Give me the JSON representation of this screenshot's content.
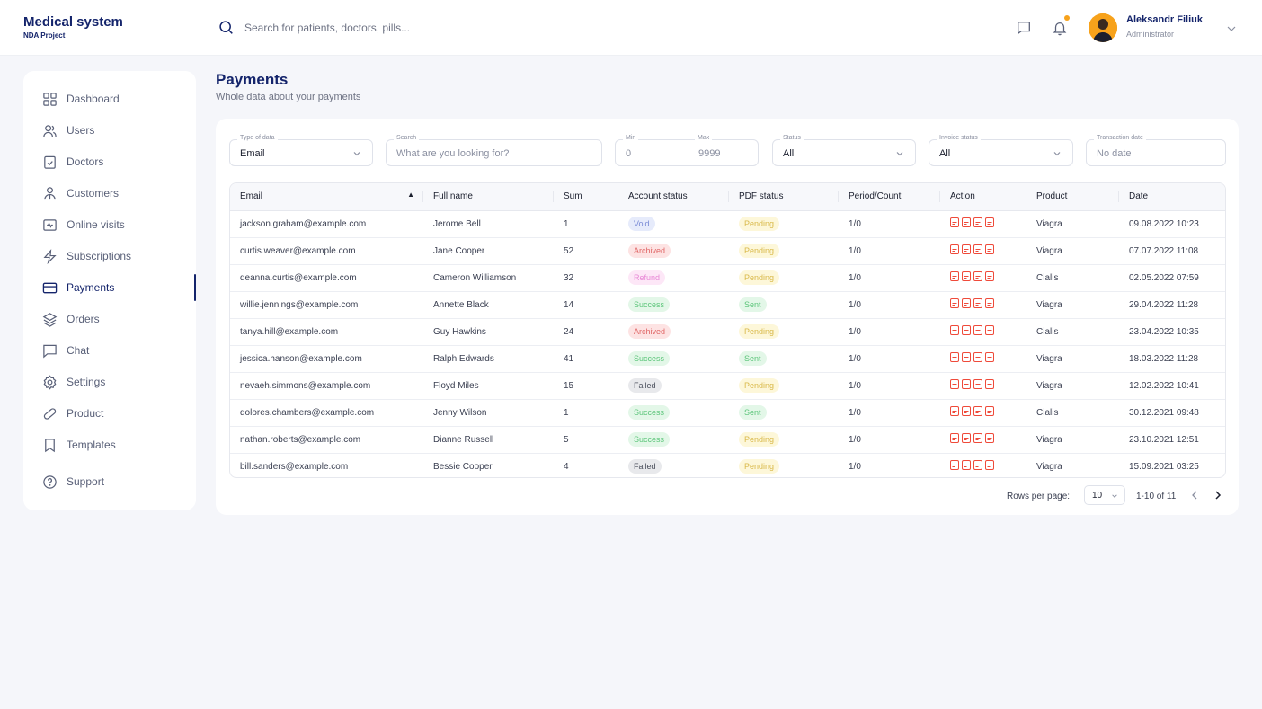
{
  "brand": {
    "title": "Medical system",
    "subtitle": "NDA Project"
  },
  "search": {
    "placeholder": "Search for patients, doctors, pills..."
  },
  "user": {
    "name": "Aleksandr Filiuk",
    "role": "Administrator"
  },
  "icons": {
    "notification_dot_color": "#f7a21b",
    "accent": "#14246b"
  },
  "sidebar": {
    "items": [
      {
        "label": "Dashboard",
        "icon": "grid-icon"
      },
      {
        "label": "Users",
        "icon": "users-icon"
      },
      {
        "label": "Doctors",
        "icon": "clipboard-icon"
      },
      {
        "label": "Customers",
        "icon": "customer-icon"
      },
      {
        "label": "Online visits",
        "icon": "video-icon"
      },
      {
        "label": "Subscriptions",
        "icon": "lightning-icon"
      },
      {
        "label": "Payments",
        "icon": "card-icon",
        "active": true
      },
      {
        "label": "Orders",
        "icon": "layers-icon"
      },
      {
        "label": "Chat",
        "icon": "chat-icon"
      },
      {
        "label": "Settings",
        "icon": "gear-icon"
      },
      {
        "label": "Product",
        "icon": "pill-icon"
      },
      {
        "label": "Templates",
        "icon": "bookmark-icon"
      },
      {
        "label": "Support",
        "icon": "help-icon"
      }
    ]
  },
  "page": {
    "title": "Payments",
    "subtitle": "Whole data about your payments"
  },
  "filters": {
    "type_label": "Type of data",
    "type_value": "Email",
    "search_label": "Search",
    "search_placeholder": "What are you looking for?",
    "min_label": "Min",
    "min_value": "0",
    "max_label": "Max",
    "max_value": "9999",
    "status_label": "Status",
    "status_value": "All",
    "invoice_label": "Invoice status",
    "invoice_value": "All",
    "date_label": "Transaction date",
    "date_value": "No date"
  },
  "table": {
    "columns": [
      "Email",
      "Full name",
      "Sum",
      "Account status",
      "PDF status",
      "Period/Count",
      "Action",
      "Product",
      "Date"
    ],
    "rows": [
      {
        "email": "jackson.graham@example.com",
        "name": "Jerome Bell",
        "sum": "1",
        "account": "Void",
        "pdf": "Pending",
        "period": "1/0",
        "product": "Viagra",
        "date": "09.08.2022 10:23"
      },
      {
        "email": "curtis.weaver@example.com",
        "name": "Jane Cooper",
        "sum": "52",
        "account": "Archived",
        "pdf": "Pending",
        "period": "1/0",
        "product": "Viagra",
        "date": "07.07.2022 11:08"
      },
      {
        "email": "deanna.curtis@example.com",
        "name": "Cameron Williamson",
        "sum": "32",
        "account": "Refund",
        "pdf": "Pending",
        "period": "1/0",
        "product": "Cialis",
        "date": "02.05.2022 07:59"
      },
      {
        "email": "willie.jennings@example.com",
        "name": "Annette Black",
        "sum": "14",
        "account": "Success",
        "pdf": "Sent",
        "period": "1/0",
        "product": "Viagra",
        "date": "29.04.2022 11:28"
      },
      {
        "email": "tanya.hill@example.com",
        "name": "Guy Hawkins",
        "sum": "24",
        "account": "Archived",
        "pdf": "Pending",
        "period": "1/0",
        "product": "Cialis",
        "date": "23.04.2022 10:35"
      },
      {
        "email": "jessica.hanson@example.com",
        "name": "Ralph Edwards",
        "sum": "41",
        "account": "Success",
        "pdf": "Sent",
        "period": "1/0",
        "product": "Viagra",
        "date": "18.03.2022 11:28"
      },
      {
        "email": "nevaeh.simmons@example.com",
        "name": "Floyd Miles",
        "sum": "15",
        "account": "Failed",
        "pdf": "Pending",
        "period": "1/0",
        "product": "Viagra",
        "date": "12.02.2022 10:41"
      },
      {
        "email": "dolores.chambers@example.com",
        "name": "Jenny Wilson",
        "sum": "1",
        "account": "Success",
        "pdf": "Sent",
        "period": "1/0",
        "product": "Cialis",
        "date": "30.12.2021 09:48"
      },
      {
        "email": "nathan.roberts@example.com",
        "name": "Dianne Russell",
        "sum": "5",
        "account": "Success",
        "pdf": "Pending",
        "period": "1/0",
        "product": "Viagra",
        "date": "23.10.2021 12:51"
      },
      {
        "email": "bill.sanders@example.com",
        "name": "Bessie Cooper",
        "sum": "4",
        "account": "Failed",
        "pdf": "Pending",
        "period": "1/0",
        "product": "Viagra",
        "date": "15.09.2021 03:25"
      }
    ],
    "status_colors": {
      "Void": {
        "bg": "#e6ebfb",
        "fg": "#7b8cd6"
      },
      "Archived": {
        "bg": "#fde3e3",
        "fg": "#e06767"
      },
      "Refund": {
        "bg": "#fde7f7",
        "fg": "#e887d6"
      },
      "Success": {
        "bg": "#e3f7e8",
        "fg": "#5cc57a"
      },
      "Failed": {
        "bg": "#e8e9ec",
        "fg": "#4a4f5c"
      },
      "Pending": {
        "bg": "#fdf7d9",
        "fg": "#d9b94a"
      },
      "Sent": {
        "bg": "#e3f7e8",
        "fg": "#5cc57a"
      }
    },
    "pdf_icon_color": "#ef4a3a"
  },
  "pagination": {
    "rows_label": "Rows per page:",
    "rows_value": "10",
    "range": "1-10 of 11"
  }
}
